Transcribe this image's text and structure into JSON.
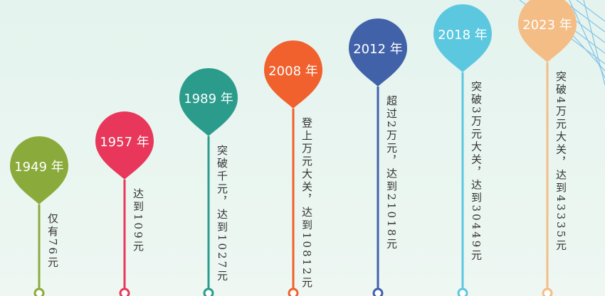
{
  "items": [
    {
      "year": "1949 年",
      "text": "仅有76元",
      "color": "#8aab3b"
    },
    {
      "year": "1957 年",
      "text": "达到109元",
      "color": "#e8375a"
    },
    {
      "year": "1989 年",
      "text": "突破千元，达到1027元",
      "color": "#2b9c8b"
    },
    {
      "year": "2008 年",
      "text": "登上万元大关，达到10812元",
      "color": "#f0612d"
    },
    {
      "year": "2012 年",
      "text": "超过2万元，达到21018元",
      "color": "#4162a9"
    },
    {
      "year": "2018 年",
      "text": "突破3万元大关，达到30449元",
      "color": "#5cc8e0"
    },
    {
      "year": "2023 年",
      "text": "突破4万元大关，达到43335元",
      "color": "#f4bd86"
    }
  ]
}
